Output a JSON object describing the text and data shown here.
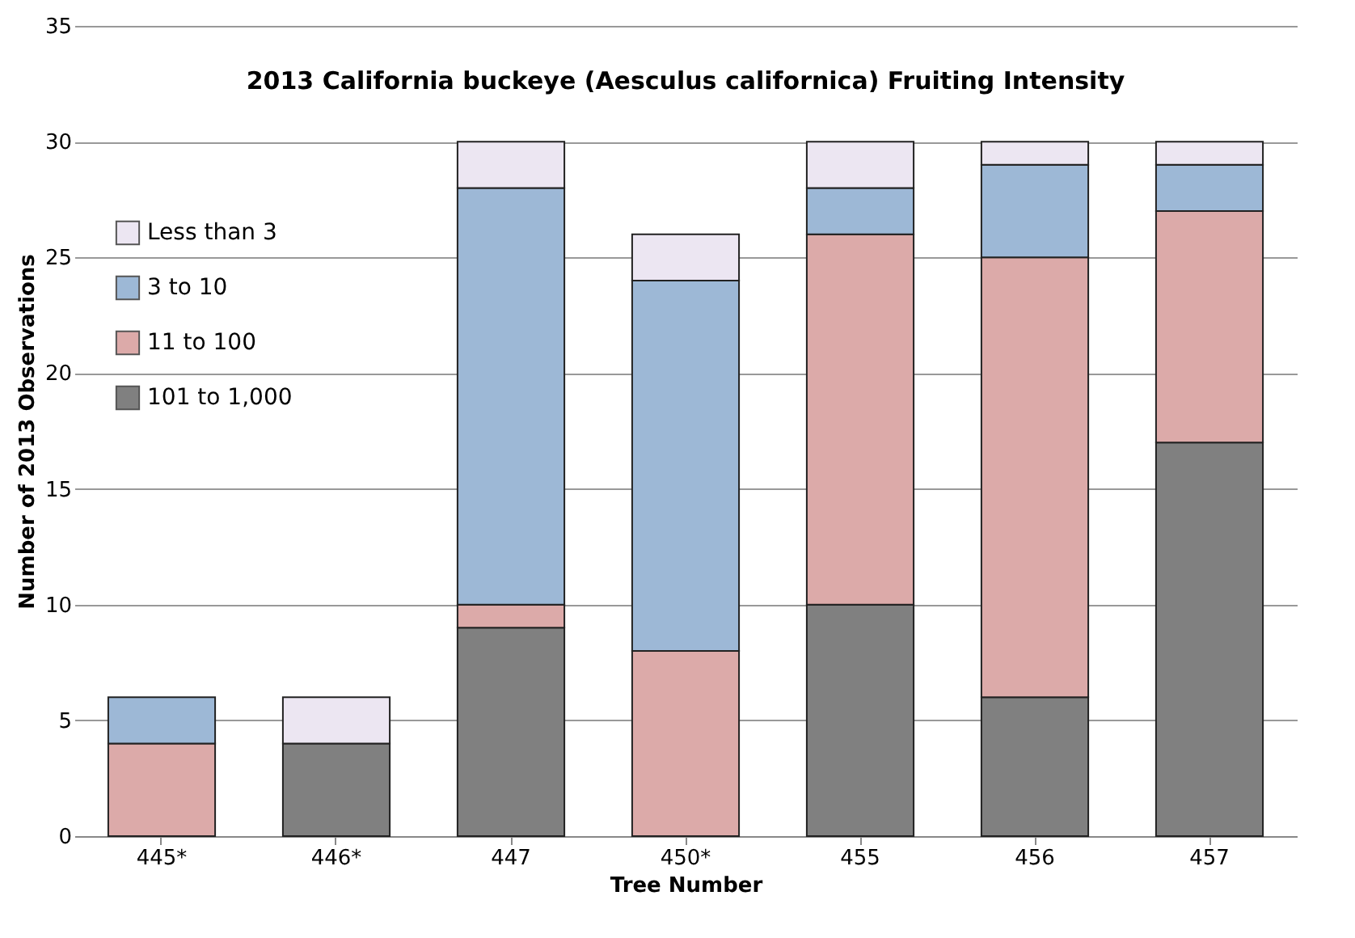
{
  "chart_data": {
    "type": "bar",
    "title": "2013 California buckeye (Aesculus californica) Fruiting Intensity",
    "xlabel": "Tree Number",
    "ylabel": "Number of 2013 Observations",
    "categories": [
      "445*",
      "446*",
      "447",
      "450*",
      "455",
      "456",
      "457"
    ],
    "stacked": true,
    "series": [
      {
        "name": "101 to 1,000",
        "color": "#808080",
        "values": [
          0,
          4,
          9,
          0,
          10,
          6,
          17
        ]
      },
      {
        "name": "11 to 100",
        "color": "#dcaaa9",
        "values": [
          4,
          0,
          1,
          8,
          16,
          19,
          10
        ]
      },
      {
        "name": "3 to 10",
        "color": "#9db8d6",
        "values": [
          2,
          0,
          18,
          16,
          2,
          4,
          2
        ]
      },
      {
        "name": "Less than 3",
        "color": "#ece6f2",
        "values": [
          0,
          2,
          2,
          2,
          2,
          1,
          1
        ]
      }
    ],
    "ylim": [
      0,
      35
    ],
    "yticks": [
      0,
      5,
      10,
      15,
      20,
      25,
      30,
      35
    ],
    "grid": "y",
    "legend": "top left"
  }
}
